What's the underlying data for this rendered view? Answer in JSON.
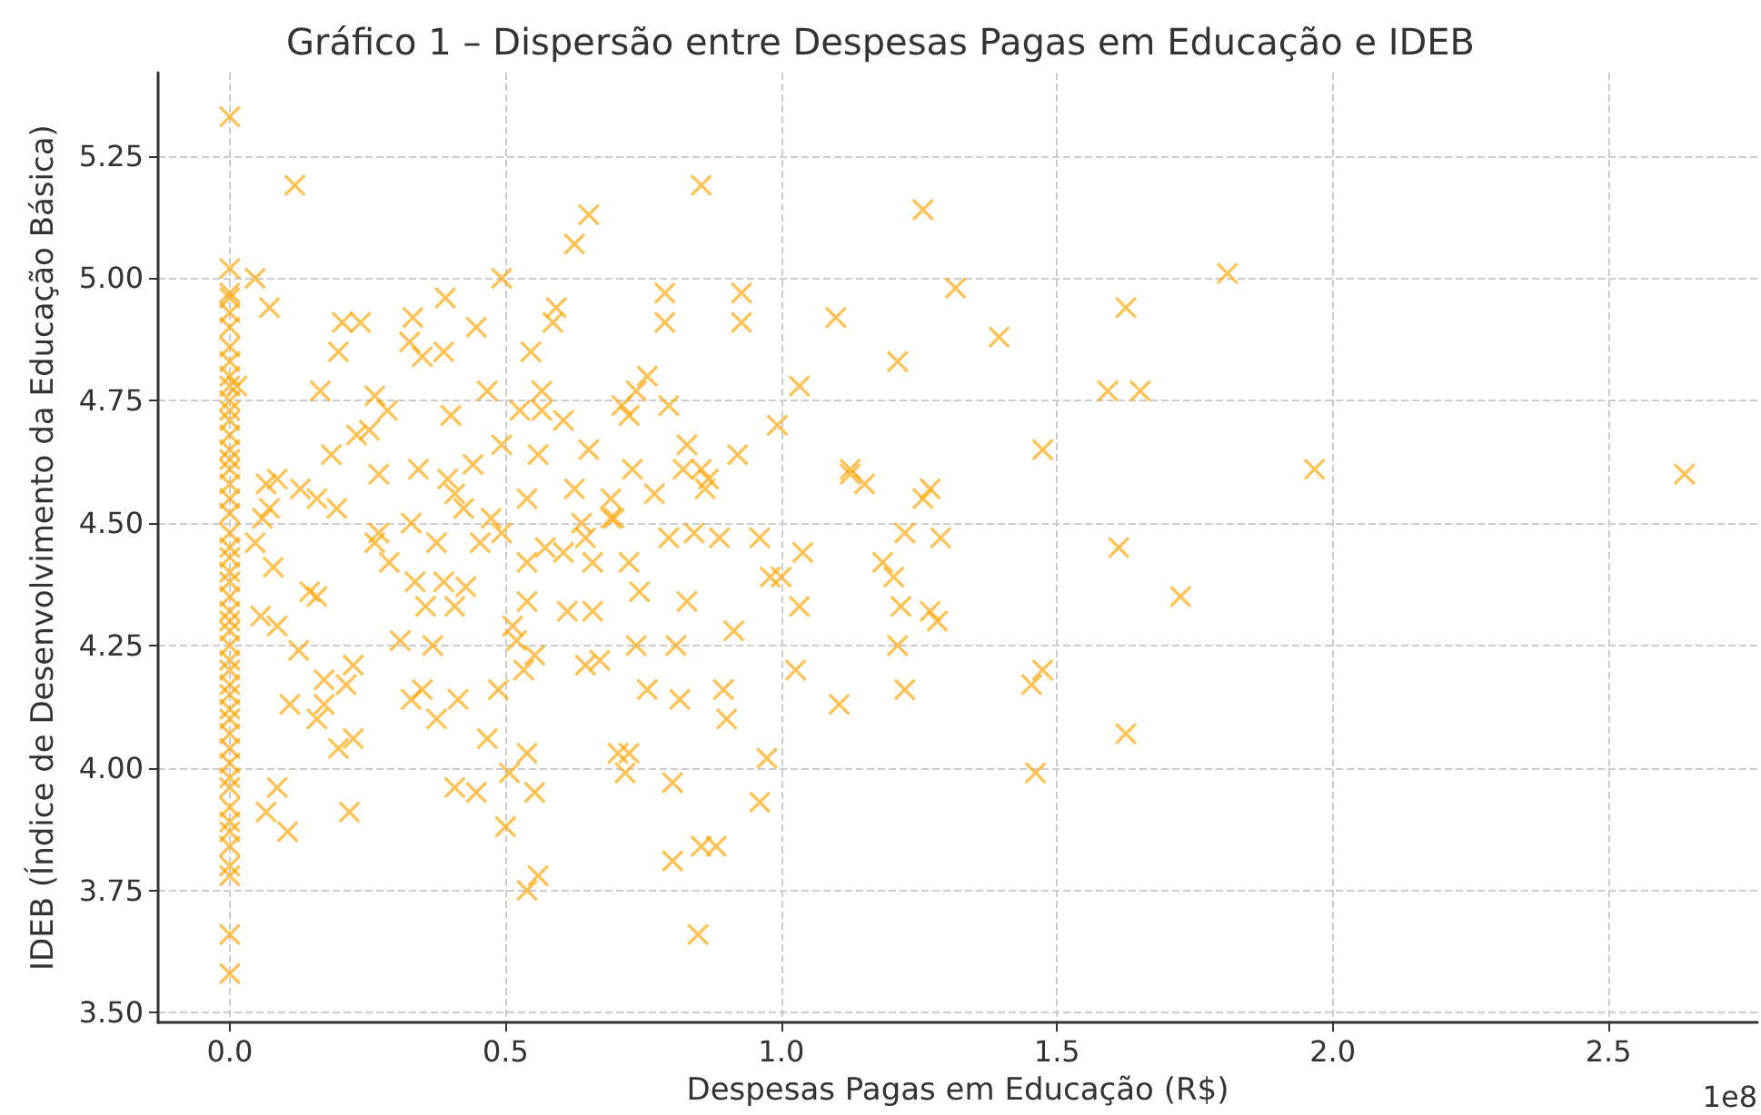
{
  "chart_data": {
    "type": "scatter",
    "title": "Gráfico 1 – Dispersão entre Despesas Pagas em Educação e IDEB",
    "xlabel": "Despesas Pagas em Educação (R$)",
    "ylabel": "IDEB (Índice de Desenvolvimento da Educação Básica)",
    "annotations": [
      "1e8"
    ],
    "xlim": [
      -0.13,
      2.77
    ],
    "ylim": [
      3.48,
      5.42
    ],
    "xticks": [
      {
        "value": 0,
        "label": "0.0"
      },
      {
        "value": 0.5,
        "label": "0.5"
      },
      {
        "value": 1,
        "label": "1.0"
      },
      {
        "value": 1.5,
        "label": "1.5"
      },
      {
        "value": 2,
        "label": "2.0"
      },
      {
        "value": 2.5,
        "label": "2.5"
      }
    ],
    "yticks": [
      {
        "value": 3.5,
        "label": "3.50"
      },
      {
        "value": 3.75,
        "label": "3.75"
      },
      {
        "value": 4,
        "label": "4.00"
      },
      {
        "value": 4.25,
        "label": "4.25"
      },
      {
        "value": 4.5,
        "label": "4.50"
      },
      {
        "value": 4.75,
        "label": "4.75"
      },
      {
        "value": 5,
        "label": "5.00"
      },
      {
        "value": 5.25,
        "label": "5.25"
      }
    ],
    "grid": true,
    "marker": "cross",
    "series": [
      {
        "color": "#ffa500",
        "x": [
          0,
          0,
          0,
          0,
          0,
          0,
          0,
          0,
          0,
          0,
          0,
          0,
          0,
          0,
          0,
          0,
          0,
          0,
          0,
          0,
          0,
          0,
          0,
          0,
          0,
          0,
          0,
          0,
          0,
          0,
          0,
          0,
          0,
          0,
          0,
          0,
          0,
          0,
          0,
          0,
          0,
          0,
          0,
          0,
          0,
          0,
          0,
          0,
          0,
          0.013,
          0.118,
          0.046,
          0.072,
          0.086,
          0.204,
          0.237,
          0.197,
          0.326,
          0.349,
          0.388,
          0.391,
          0.493,
          0.625,
          0.651,
          0.855,
          1.257,
          0.332,
          0.164,
          0.263,
          0.286,
          0.253,
          0.23,
          0.184,
          0.27,
          0.194,
          0.158,
          0.128,
          0.066,
          0.046,
          0.059,
          0.072,
          0.079,
          0.056,
          0.086,
          0.145,
          0.158,
          0.125,
          0.171,
          0.171,
          0.224,
          0.211,
          0.158,
          0.109,
          0.224,
          0.197,
          0.086,
          0.066,
          0.105,
          0.217,
          0.263,
          0.27,
          0.289,
          0.336,
          0.355,
          0.388,
          0.368,
          0.309,
          0.329,
          0.349,
          0.375,
          0.414,
          0.408,
          0.447,
          0.467,
          0.487,
          0.5,
          0.507,
          0.52,
          0.513,
          0.539,
          0.539,
          0.559,
          0.566,
          0.546,
          0.592,
          0.586,
          0.526,
          0.566,
          0.441,
          0.467,
          0.447,
          0.401,
          0.408,
          0.493,
          0.424,
          0.474,
          0.493,
          0.454,
          0.375,
          0.329,
          0.342,
          0.395,
          0.408,
          0.428,
          0.539,
          0.559,
          0.553,
          0.539,
          0.533,
          0.553,
          0.539,
          0.572,
          0.605,
          0.645,
          0.638,
          0.625,
          0.651,
          0.691,
          0.691,
          0.658,
          0.612,
          0.658,
          0.645,
          0.671,
          0.697,
          0.711,
          0.737,
          0.724,
          0.757,
          0.73,
          0.724,
          0.743,
          0.737,
          0.757,
          0.704,
          0.724,
          0.717,
          0.789,
          0.789,
          0.809,
          0.816,
          0.803,
          0.803,
          0.849,
          0.855,
          0.882,
          0.895,
          0.901,
          0.914,
          0.829,
          0.842,
          0.822,
          0.829,
          0.855,
          0.862,
          0.868,
          0.888,
          0.921,
          0.928,
          0.928,
          0.961,
          0.974,
          0.961,
          0.98,
          1.0,
          0.993,
          1.026,
          1.033,
          1.039,
          1.033,
          1.105,
          1.099,
          1.125,
          1.125,
          1.151,
          1.184,
          1.204,
          1.211,
          1.224,
          1.211,
          1.224,
          1.217,
          1.257,
          1.27,
          1.27,
          1.283,
          1.289,
          1.316,
          1.395,
          1.454,
          1.461,
          1.474,
          1.474,
          1.592,
          1.612,
          1.625,
          1.625,
          1.651,
          1.724,
          1.809,
          1.967,
          2.638,
          0.796,
          0.77,
          0.796,
          0.605
        ],
        "values": [
          5.33,
          5.02,
          4.97,
          4.96,
          4.93,
          4.9,
          4.86,
          4.83,
          4.8,
          4.78,
          4.75,
          4.73,
          4.71,
          4.68,
          4.65,
          4.63,
          4.61,
          4.58,
          4.55,
          4.52,
          4.48,
          4.45,
          4.43,
          4.4,
          4.38,
          4.35,
          4.32,
          4.3,
          4.28,
          4.25,
          4.22,
          4.2,
          4.17,
          4.15,
          4.12,
          4.1,
          4.07,
          4.04,
          4.01,
          3.98,
          3.96,
          3.92,
          3.89,
          3.87,
          3.84,
          3.8,
          3.78,
          3.66,
          3.58,
          4.78,
          5.19,
          5.0,
          4.94,
          4.59,
          4.91,
          4.91,
          4.85,
          4.87,
          4.84,
          4.85,
          4.96,
          5.0,
          5.07,
          5.13,
          5.19,
          5.14,
          4.92,
          4.77,
          4.76,
          4.73,
          4.69,
          4.68,
          4.64,
          4.6,
          4.53,
          4.55,
          4.57,
          4.58,
          4.46,
          4.51,
          4.53,
          4.41,
          4.31,
          4.29,
          4.36,
          4.35,
          4.24,
          4.18,
          4.13,
          4.21,
          4.17,
          4.1,
          4.13,
          4.06,
          4.04,
          3.96,
          3.91,
          3.87,
          3.91,
          4.46,
          4.48,
          4.42,
          4.38,
          4.33,
          4.38,
          4.25,
          4.26,
          4.14,
          4.16,
          4.1,
          4.14,
          3.96,
          3.95,
          4.06,
          4.16,
          3.88,
          3.99,
          4.26,
          4.29,
          4.42,
          4.55,
          4.64,
          4.77,
          4.85,
          4.94,
          4.91,
          4.73,
          4.73,
          4.62,
          4.77,
          4.9,
          4.72,
          4.56,
          4.66,
          4.53,
          4.51,
          4.48,
          4.46,
          4.46,
          4.5,
          4.61,
          4.59,
          4.33,
          4.37,
          3.75,
          3.78,
          3.95,
          4.03,
          4.2,
          4.23,
          4.34,
          4.45,
          4.44,
          4.47,
          4.5,
          4.57,
          4.65,
          4.55,
          4.51,
          4.42,
          4.32,
          4.32,
          4.21,
          4.22,
          4.51,
          4.74,
          4.77,
          4.72,
          4.8,
          4.61,
          4.42,
          4.36,
          4.25,
          4.16,
          4.03,
          4.03,
          3.99,
          4.97,
          4.91,
          4.25,
          4.14,
          3.97,
          3.81,
          3.66,
          3.84,
          3.84,
          4.16,
          4.1,
          4.28,
          4.34,
          4.48,
          4.61,
          4.66,
          4.61,
          4.57,
          4.59,
          4.47,
          4.64,
          4.97,
          4.91,
          4.47,
          4.02,
          3.93,
          4.39,
          4.39,
          4.7,
          4.2,
          4.33,
          4.44,
          4.78,
          4.13,
          4.92,
          4.61,
          4.6,
          4.58,
          4.42,
          4.39,
          4.25,
          4.16,
          4.83,
          4.48,
          4.33,
          4.55,
          4.57,
          4.32,
          4.3,
          4.47,
          4.98,
          4.88,
          4.17,
          3.99,
          4.2,
          4.65,
          4.77,
          4.45,
          4.94,
          4.07,
          4.77,
          4.35,
          5.01,
          4.61,
          4.6,
          4.74,
          4.56,
          4.47,
          4.71
        ]
      }
    ]
  }
}
